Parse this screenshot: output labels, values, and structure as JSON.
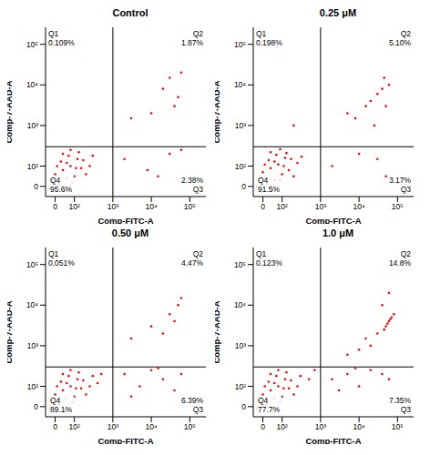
{
  "chart_data": [
    {
      "type": "scatter",
      "title": "Control",
      "x_label": "Comp-FITC-A",
      "y_label": "Comp-7-AAD-A",
      "xlim": [
        -50,
        262144
      ],
      "ylim": [
        -50,
        262144
      ],
      "xticks": [
        0,
        {
          "value": 100,
          "label": "10²"
        },
        {
          "value": 1000,
          "label": "10³"
        },
        {
          "value": 10000,
          "label": "10⁴"
        },
        {
          "value": 100000,
          "label": "10⁵"
        }
      ],
      "yticks": [
        0,
        {
          "value": 100,
          "label": "10²"
        },
        {
          "value": 1000,
          "label": "10³"
        },
        {
          "value": 10000,
          "label": "10⁴"
        },
        {
          "value": 100000,
          "label": "10⁵"
        }
      ],
      "quadrant_gate": {
        "x": 1000,
        "y": 300
      },
      "quadrants": [
        {
          "name": "Q1",
          "label": "0.109%"
        },
        {
          "name": "Q2",
          "label": "1.87%"
        },
        {
          "name": "Q3",
          "label": "2.38%"
        },
        {
          "name": "Q4",
          "label": "95.6%"
        }
      ],
      "series": [
        {
          "color": "#ff0000",
          "points": [
            [
              -20,
              30
            ],
            [
              0,
              60
            ],
            [
              20,
              10
            ],
            [
              40,
              80
            ],
            [
              60,
              40
            ],
            [
              80,
              100
            ],
            [
              100,
              50
            ],
            [
              120,
              150
            ],
            [
              150,
              90
            ],
            [
              200,
              60
            ],
            [
              30,
              130
            ],
            [
              70,
              180
            ],
            [
              50,
              -20
            ],
            [
              90,
              20
            ],
            [
              130,
              220
            ],
            [
              10,
              100
            ],
            [
              -30,
              -10
            ],
            [
              60,
              120
            ],
            [
              110,
              90
            ],
            [
              170,
              140
            ],
            [
              250,
              100
            ],
            [
              40,
              200
            ],
            [
              80,
              250
            ],
            [
              300,
              180
            ],
            [
              3000,
              1500
            ],
            [
              20000,
              8000
            ],
            [
              50000,
              5000
            ],
            [
              30000,
              15000
            ],
            [
              10000,
              2000
            ],
            [
              60000,
              20000
            ],
            [
              40000,
              3000
            ],
            [
              2000,
              150
            ],
            [
              8000,
              80
            ],
            [
              30000,
              200
            ],
            [
              15000,
              50
            ],
            [
              60000,
              250
            ]
          ]
        }
      ]
    },
    {
      "type": "scatter",
      "title": "0.25 μM",
      "x_label": "Comp-FITC-A",
      "y_label": "Comp-7-AAD-A",
      "xlim": [
        -50,
        262144
      ],
      "ylim": [
        -50,
        262144
      ],
      "xticks": [
        0,
        {
          "value": 100,
          "label": "10²"
        },
        {
          "value": 1000,
          "label": "10³"
        },
        {
          "value": 10000,
          "label": "10⁴"
        },
        {
          "value": 100000,
          "label": "10⁵"
        }
      ],
      "yticks": [
        0,
        {
          "value": 100,
          "label": "10²"
        },
        {
          "value": 1000,
          "label": "10³"
        },
        {
          "value": 10000,
          "label": "10⁴"
        },
        {
          "value": 100000,
          "label": "10⁵"
        }
      ],
      "quadrant_gate": {
        "x": 1000,
        "y": 300
      },
      "quadrants": [
        {
          "name": "Q1",
          "label": "0.198%"
        },
        {
          "name": "Q2",
          "label": "5.10%"
        },
        {
          "name": "Q3",
          "label": "3.17%"
        },
        {
          "name": "Q4",
          "label": "91.5%"
        }
      ],
      "series": [
        {
          "color": "#ff0000",
          "points": [
            [
              -20,
              40
            ],
            [
              0,
              70
            ],
            [
              20,
              10
            ],
            [
              40,
              90
            ],
            [
              60,
              30
            ],
            [
              80,
              110
            ],
            [
              100,
              60
            ],
            [
              120,
              160
            ],
            [
              150,
              80
            ],
            [
              200,
              50
            ],
            [
              30,
              140
            ],
            [
              70,
              190
            ],
            [
              50,
              -20
            ],
            [
              90,
              30
            ],
            [
              130,
              210
            ],
            [
              10,
              110
            ],
            [
              -30,
              0
            ],
            [
              60,
              130
            ],
            [
              110,
              100
            ],
            [
              170,
              150
            ],
            [
              250,
              120
            ],
            [
              40,
              220
            ],
            [
              90,
              260
            ],
            [
              320,
              170
            ],
            [
              200,
              1000
            ],
            [
              5000,
              2000
            ],
            [
              20000,
              4000
            ],
            [
              40000,
              8000
            ],
            [
              45000,
              15000
            ],
            [
              30000,
              6000
            ],
            [
              50000,
              3000
            ],
            [
              60000,
              10000
            ],
            [
              25000,
              1000
            ],
            [
              15000,
              3000
            ],
            [
              8000,
              1500
            ],
            [
              2000,
              100
            ],
            [
              10000,
              200
            ],
            [
              30000,
              150
            ],
            [
              50000,
              50
            ]
          ]
        }
      ]
    },
    {
      "type": "scatter",
      "title": "0.50 μM",
      "x_label": "Comp-FITC-A",
      "y_label": "Comp-7-AAD-A",
      "xlim": [
        -50,
        262144
      ],
      "ylim": [
        -50,
        262144
      ],
      "xticks": [
        0,
        {
          "value": 100,
          "label": "10²"
        },
        {
          "value": 1000,
          "label": "10³"
        },
        {
          "value": 10000,
          "label": "10⁴"
        },
        {
          "value": 100000,
          "label": "10⁵"
        }
      ],
      "yticks": [
        0,
        {
          "value": 100,
          "label": "10²"
        },
        {
          "value": 1000,
          "label": "10³"
        },
        {
          "value": 10000,
          "label": "10⁴"
        },
        {
          "value": 100000,
          "label": "10⁵"
        }
      ],
      "quadrant_gate": {
        "x": 1000,
        "y": 300
      },
      "quadrants": [
        {
          "name": "Q1",
          "label": "0.051%"
        },
        {
          "name": "Q2",
          "label": "4.47%"
        },
        {
          "name": "Q3",
          "label": "6.39%"
        },
        {
          "name": "Q4",
          "label": "89.1%"
        }
      ],
      "series": [
        {
          "color": "#ff0000",
          "points": [
            [
              -20,
              30
            ],
            [
              0,
              60
            ],
            [
              20,
              10
            ],
            [
              40,
              80
            ],
            [
              60,
              40
            ],
            [
              80,
              100
            ],
            [
              100,
              50
            ],
            [
              120,
              150
            ],
            [
              150,
              90
            ],
            [
              200,
              60
            ],
            [
              30,
              130
            ],
            [
              70,
              180
            ],
            [
              50,
              -20
            ],
            [
              90,
              20
            ],
            [
              130,
              220
            ],
            [
              10,
              100
            ],
            [
              -30,
              -10
            ],
            [
              60,
              120
            ],
            [
              110,
              90
            ],
            [
              170,
              140
            ],
            [
              250,
              100
            ],
            [
              40,
              200
            ],
            [
              80,
              250
            ],
            [
              300,
              180
            ],
            [
              400,
              120
            ],
            [
              500,
              200
            ],
            [
              3000,
              1500
            ],
            [
              10000,
              3000
            ],
            [
              30000,
              6000
            ],
            [
              50000,
              10000
            ],
            [
              60000,
              15000
            ],
            [
              40000,
              4000
            ],
            [
              20000,
              2000
            ],
            [
              2000,
              200
            ],
            [
              5000,
              100
            ],
            [
              10000,
              250
            ],
            [
              20000,
              150
            ],
            [
              40000,
              80
            ],
            [
              60000,
              200
            ],
            [
              3000,
              50
            ],
            [
              15000,
              280
            ]
          ]
        }
      ]
    },
    {
      "type": "scatter",
      "title": "1.0 μM",
      "x_label": "Comp-FITC-A",
      "y_label": "Comp-7-AAD-A",
      "xlim": [
        -50,
        262144
      ],
      "ylim": [
        -50,
        262144
      ],
      "xticks": [
        0,
        {
          "value": 100,
          "label": "10²"
        },
        {
          "value": 1000,
          "label": "10³"
        },
        {
          "value": 10000,
          "label": "10⁴"
        },
        {
          "value": 100000,
          "label": "10⁵"
        }
      ],
      "yticks": [
        0,
        {
          "value": 100,
          "label": "10²"
        },
        {
          "value": 1000,
          "label": "10³"
        },
        {
          "value": 10000,
          "label": "10⁴"
        },
        {
          "value": 100000,
          "label": "10⁵"
        }
      ],
      "quadrant_gate": {
        "x": 1000,
        "y": 300
      },
      "quadrants": [
        {
          "name": "Q1",
          "label": "0.123%"
        },
        {
          "name": "Q2",
          "label": "14.8%"
        },
        {
          "name": "Q3",
          "label": "7.35%"
        },
        {
          "name": "Q4",
          "label": "77.7%"
        }
      ],
      "series": [
        {
          "color": "#ff0000",
          "points": [
            [
              -20,
              30
            ],
            [
              0,
              60
            ],
            [
              20,
              10
            ],
            [
              40,
              80
            ],
            [
              60,
              40
            ],
            [
              80,
              100
            ],
            [
              100,
              50
            ],
            [
              120,
              150
            ],
            [
              150,
              90
            ],
            [
              200,
              60
            ],
            [
              30,
              130
            ],
            [
              70,
              180
            ],
            [
              50,
              -20
            ],
            [
              90,
              20
            ],
            [
              130,
              220
            ],
            [
              10,
              100
            ],
            [
              -30,
              -10
            ],
            [
              60,
              120
            ],
            [
              110,
              90
            ],
            [
              170,
              140
            ],
            [
              250,
              100
            ],
            [
              40,
              200
            ],
            [
              80,
              250
            ],
            [
              300,
              180
            ],
            [
              500,
              150
            ],
            [
              700,
              250
            ],
            [
              50000,
              3000
            ],
            [
              60000,
              4000
            ],
            [
              70000,
              5000
            ],
            [
              55000,
              3500
            ],
            [
              65000,
              4500
            ],
            [
              45000,
              2500
            ],
            [
              80000,
              6000
            ],
            [
              30000,
              2000
            ],
            [
              20000,
              1000
            ],
            [
              10000,
              800
            ],
            [
              5000,
              600
            ],
            [
              40000,
              10000
            ],
            [
              60000,
              20000
            ],
            [
              15000,
              1500
            ],
            [
              2000,
              150
            ],
            [
              5000,
              200
            ],
            [
              10000,
              100
            ],
            [
              20000,
              250
            ],
            [
              40000,
              200
            ],
            [
              60000,
              150
            ],
            [
              3000,
              80
            ],
            [
              8000,
              280
            ]
          ]
        }
      ]
    }
  ]
}
